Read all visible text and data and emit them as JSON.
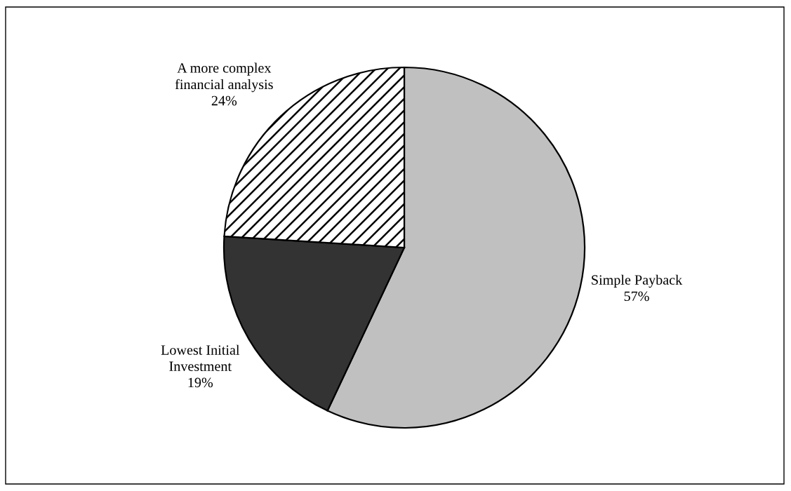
{
  "chart_data": {
    "type": "pie",
    "categories": [
      "Simple Payback",
      "Lowest Initial\nInvestment",
      "A more complex\nfinancial analysis"
    ],
    "values": [
      57,
      19,
      24
    ],
    "value_labels": [
      "57%",
      "19%",
      "24%"
    ],
    "colors": [
      "#c0c0c0",
      "#333333",
      "#ffffff"
    ],
    "legend": false
  }
}
